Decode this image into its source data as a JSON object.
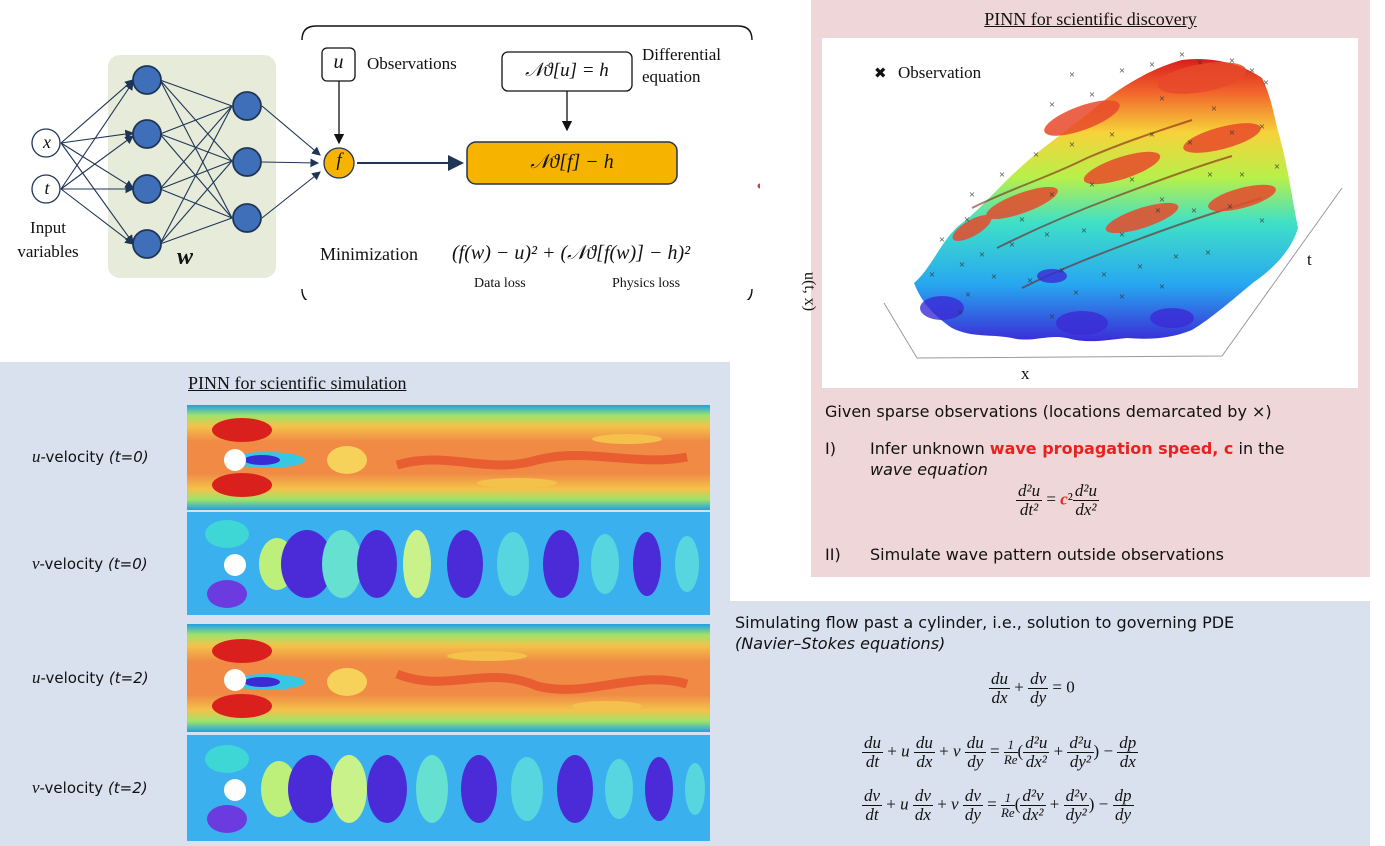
{
  "nn": {
    "input_x": "x",
    "input_t": "t",
    "input_label_line1": "Input",
    "input_label_line2": "variables",
    "weights": "w",
    "output_f": "f"
  },
  "loss_box": {
    "u": "u",
    "observations": "Observations",
    "diff_eq_expr": "𝒩ϑ[u] = h",
    "diff_eq_line1": "Differential",
    "diff_eq_line2": "equation",
    "residual_expr": "𝒩ϑ[f] − h",
    "minimization": "Minimization",
    "loss_expr": "(f(w) − u)² + (𝒩ϑ[f(w)] − h)²",
    "data_loss": "Data loss",
    "physics_loss": "Physics loss"
  },
  "discovery": {
    "title": "PINN for scientific discovery",
    "legend": "Observation",
    "axis_z": "u(t, x)",
    "axis_x": "x",
    "axis_t": "t",
    "caption": "Given sparse observations (locations demarcated by ×)",
    "item1_num": "I)",
    "item1_pre": "Infer unknown ",
    "item1_bold": "wave propagation speed, c",
    "item1_post": " in the",
    "item1_it": "wave equation",
    "item2_num": "II)",
    "item2": "Simulate wave pattern outside observations",
    "highlight_color": "#e8231f"
  },
  "simulation": {
    "title": "PINN for scientific simulation",
    "rows": [
      {
        "var": "u",
        "label": "-velocity ",
        "time": "(t=0)"
      },
      {
        "var": "v",
        "label": "-velocity ",
        "time": "(t=0)"
      },
      {
        "var": "u",
        "label": "-velocity ",
        "time": "(t=2)"
      },
      {
        "var": "v",
        "label": "-velocity ",
        "time": "(t=2)"
      }
    ]
  },
  "ns": {
    "line1": "Simulating flow past a cylinder, i.e., solution to governing PDE",
    "line2": "(Navier–Stokes equations)"
  },
  "colors": {
    "nn_panel": "#e6ecd9",
    "node": "#3f6fb8",
    "output": "#f6b400",
    "discovery_bg": "#efd6d8",
    "simulation_bg": "#d9e1ef",
    "arrow_red": "#b24a45",
    "arrow_blue": "#1f6fb5"
  }
}
